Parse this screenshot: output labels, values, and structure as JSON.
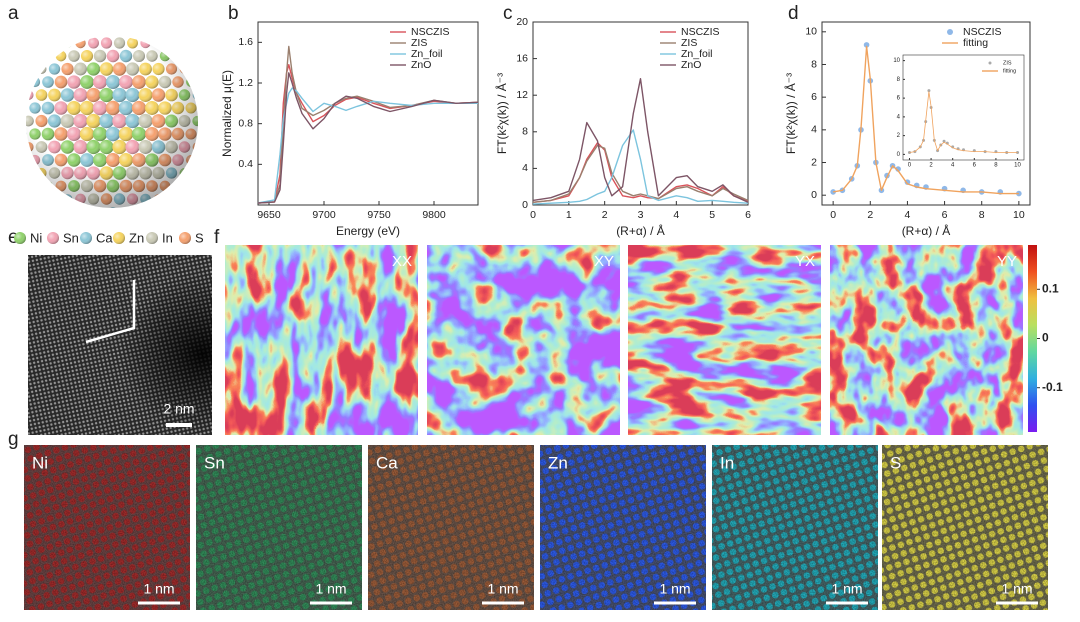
{
  "panel_labels": [
    "a",
    "b",
    "c",
    "d",
    "e",
    "f",
    "g"
  ],
  "atom_legend": [
    {
      "name": "Ni",
      "color": "#8fd16a"
    },
    {
      "name": "Sn",
      "color": "#f2a3b3"
    },
    {
      "name": "Ca",
      "color": "#8cc6d6"
    },
    {
      "name": "Zn",
      "color": "#f5d35e"
    },
    {
      "name": "In",
      "color": "#c9c9b5"
    },
    {
      "name": "S",
      "color": "#f5a06e"
    }
  ],
  "chart_data": [
    {
      "type": "line",
      "xlabel": "Energy (eV)",
      "ylabel": "Normalized μ(E)",
      "xlim": [
        9640,
        9840
      ],
      "xticks": [
        9650,
        9700,
        9750,
        9800
      ],
      "ylim": [
        0,
        1.8
      ],
      "yticks": [
        0.4,
        0.8,
        1.2,
        1.6
      ],
      "legend": "upper right",
      "x": [
        9640,
        9655,
        9660,
        9663,
        9666,
        9668,
        9671,
        9675,
        9680,
        9690,
        9700,
        9710,
        9720,
        9730,
        9745,
        9760,
        9780,
        9800,
        9820,
        9840
      ],
      "series": [
        {
          "name": "NSCZIS",
          "color": "#d9535a",
          "values": [
            0.02,
            0.03,
            0.3,
            1.0,
            1.3,
            1.38,
            1.25,
            1.1,
            1.0,
            0.82,
            0.88,
            0.98,
            1.04,
            1.06,
            1.0,
            0.95,
            0.98,
            1.02,
            1.0,
            1.01
          ]
        },
        {
          "name": "ZIS",
          "color": "#9a7f6e",
          "values": [
            0.02,
            0.03,
            0.2,
            0.8,
            1.3,
            1.56,
            1.3,
            1.1,
            0.95,
            0.88,
            0.93,
            1.0,
            1.05,
            1.07,
            1.02,
            0.96,
            0.98,
            1.03,
            1.0,
            1.01
          ]
        },
        {
          "name": "Zn_foil",
          "color": "#7cc4de",
          "values": [
            0.02,
            0.05,
            0.5,
            0.85,
            1.0,
            1.1,
            1.15,
            1.12,
            1.05,
            0.92,
            1.0,
            0.97,
            0.93,
            0.97,
            1.02,
            1.0,
            0.98,
            1.0,
            1.0,
            1.0
          ]
        },
        {
          "name": "ZnO",
          "color": "#7d5566",
          "values": [
            0.02,
            0.03,
            0.15,
            0.6,
            1.1,
            1.3,
            1.2,
            1.05,
            0.9,
            0.75,
            0.85,
            1.0,
            1.07,
            1.05,
            0.97,
            0.92,
            0.97,
            1.03,
            1.0,
            1.01
          ]
        }
      ]
    },
    {
      "type": "line",
      "xlabel": "(R+α) / Å",
      "ylabel": "FT(k²χ(k)) / Å⁻³",
      "xlim": [
        0,
        6
      ],
      "xticks": [
        0,
        1,
        2,
        3,
        4,
        5,
        6
      ],
      "ylim": [
        0,
        20
      ],
      "yticks": [
        0,
        4,
        8,
        12,
        16,
        20
      ],
      "legend": "upper right",
      "x": [
        0,
        0.5,
        1,
        1.3,
        1.5,
        1.8,
        2,
        2.2,
        2.5,
        2.8,
        3,
        3.2,
        3.5,
        4,
        4.3,
        4.6,
        5,
        5.3,
        5.6,
        6
      ],
      "series": [
        {
          "name": "NSCZIS",
          "color": "#d9535a",
          "values": [
            0.3,
            0.5,
            1,
            3,
            5,
            6.8,
            6,
            3,
            1,
            0.8,
            1,
            0.8,
            0.7,
            2,
            2.2,
            1.8,
            1,
            2,
            1,
            0.4
          ]
        },
        {
          "name": "ZIS",
          "color": "#9a7f6e",
          "values": [
            0.3,
            0.5,
            1.2,
            3,
            4.8,
            6.5,
            6.2,
            3.5,
            1.5,
            1,
            1.2,
            1,
            0.7,
            1.8,
            2,
            1.5,
            1,
            1.8,
            1.2,
            0.5
          ]
        },
        {
          "name": "Zn_foil",
          "color": "#7cc4de",
          "values": [
            0.1,
            0.2,
            0.3,
            0.4,
            0.6,
            1.2,
            1.5,
            3,
            6.5,
            8.2,
            5,
            1,
            0.5,
            1,
            0.8,
            0.4,
            0.5,
            0.4,
            0.3,
            0.2
          ]
        },
        {
          "name": "ZnO",
          "color": "#7d5566",
          "values": [
            0.5,
            0.8,
            1.5,
            5,
            9,
            7,
            3,
            1,
            2,
            10,
            13.8,
            8,
            1,
            3,
            3.2,
            2,
            1.5,
            2.2,
            1,
            0.3
          ]
        }
      ]
    },
    {
      "type": "line",
      "xlabel": "(R+α) / Å",
      "ylabel": "FT(k²χ(k)) / Å⁻³",
      "xlim": [
        -0.6,
        10.6
      ],
      "xticks": [
        0,
        2,
        4,
        6,
        8,
        10
      ],
      "ylim": [
        -0.6,
        10.6
      ],
      "yticks": [
        0,
        2,
        4,
        6,
        8,
        10
      ],
      "legend": "upper right",
      "x": [
        0,
        0.5,
        1,
        1.3,
        1.5,
        1.8,
        2,
        2.3,
        2.6,
        2.9,
        3.2,
        3.5,
        4,
        4.5,
        5,
        6,
        7,
        8,
        9,
        10
      ],
      "series": [
        {
          "name": "NSCZIS",
          "color": "#8fb8e8",
          "marker": true,
          "values": [
            0.2,
            0.3,
            1,
            1.8,
            4,
            9.2,
            7,
            2,
            0.3,
            1.2,
            1.8,
            1.6,
            0.8,
            0.6,
            0.5,
            0.4,
            0.3,
            0.2,
            0.2,
            0.1
          ]
        },
        {
          "name": "fitting",
          "color": "#f0a35e",
          "values": [
            0.2,
            0.3,
            1,
            1.8,
            4.1,
            9.1,
            7.1,
            2,
            0.3,
            1.1,
            1.8,
            1.5,
            0.7,
            0.5,
            0.4,
            0.3,
            0.2,
            0.2,
            0.1,
            0.1
          ]
        }
      ]
    },
    {
      "type": "line",
      "xlim": [
        -0.6,
        10.6
      ],
      "xticks": [
        0,
        2,
        4,
        6,
        8,
        10
      ],
      "ylim": [
        -0.6,
        10.6
      ],
      "yticks": [
        0,
        2,
        4,
        6,
        8,
        10
      ],
      "legend": "upper right",
      "x": [
        0,
        0.5,
        1,
        1.3,
        1.5,
        1.8,
        2,
        2.3,
        2.6,
        2.9,
        3.2,
        3.5,
        4,
        4.5,
        5,
        6,
        7,
        8,
        9,
        10
      ],
      "series": [
        {
          "name": "ZIS",
          "color": "#aaaaaa",
          "marker": true,
          "values": [
            0.2,
            0.3,
            0.8,
            1.5,
            3.5,
            6.8,
            5,
            1.5,
            0.4,
            1,
            1.4,
            1.2,
            0.8,
            0.6,
            0.5,
            0.4,
            0.3,
            0.3,
            0.2,
            0.2
          ]
        },
        {
          "name": "fitting",
          "color": "#f0a35e",
          "values": [
            0.2,
            0.3,
            0.8,
            1.5,
            3.6,
            6.7,
            5.1,
            1.5,
            0.4,
            1,
            1.3,
            1.1,
            0.7,
            0.5,
            0.4,
            0.3,
            0.3,
            0.2,
            0.2,
            0.2
          ]
        }
      ]
    }
  ],
  "hrtem_scale_bar": "2 nm",
  "strain_maps": [
    "XX",
    "XY",
    "YX",
    "YY"
  ],
  "colorbar": {
    "lim": [
      -0.19,
      0.19
    ],
    "ticks": [
      0.1,
      0,
      -0.1
    ]
  },
  "element_maps": [
    {
      "name": "Ni",
      "color": "#d01818",
      "scale_bar": "1 nm"
    },
    {
      "name": "Sn",
      "color": "#22b060",
      "scale_bar": "1 nm"
    },
    {
      "name": "Ca",
      "color": "#c8642e",
      "scale_bar": "1 nm"
    },
    {
      "name": "Zn",
      "color": "#2c5cf0",
      "scale_bar": "1 nm"
    },
    {
      "name": "In",
      "color": "#22b0c0",
      "scale_bar": "1 nm"
    },
    {
      "name": "S",
      "color": "#e0d848",
      "scale_bar": "1 nm"
    }
  ]
}
